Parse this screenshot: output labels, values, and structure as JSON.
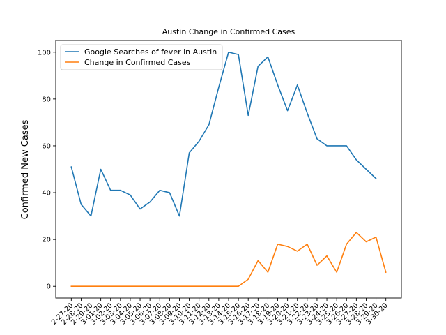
{
  "chart_data": {
    "type": "line",
    "title": "Austin Change in Confirmed Cases",
    "xlabel": "",
    "ylabel": "Confirmed New Cases",
    "ylim": [
      -5,
      105
    ],
    "yticks": [
      0,
      20,
      40,
      60,
      80,
      100
    ],
    "grid": false,
    "legend_position": "top-left",
    "categories": [
      "2-27-20",
      "2-28-20",
      "2-29-20",
      "3-01-20",
      "3-02-20",
      "3-03-20",
      "3-04-20",
      "3-05-20",
      "3-06-20",
      "3-07-20",
      "3-08-20",
      "3-09-20",
      "3-10-20",
      "3-11-20",
      "3-12-20",
      "3-13-20",
      "3-14-20",
      "3-15-20",
      "3-16-20",
      "3-17-20",
      "3-18-20",
      "3-19-20",
      "3-20-20",
      "3-21-20",
      "3-22-20",
      "3-23-20",
      "3-24-20",
      "3-25-20",
      "3-26-20",
      "3-27-20",
      "3-28-20",
      "3-29-20",
      "3-30-20"
    ],
    "series": [
      {
        "name": "Google Searches of fever in Austin",
        "color": "#1f77b4",
        "values": [
          51,
          35,
          30,
          50,
          41,
          41,
          39,
          33,
          36,
          41,
          40,
          30,
          57,
          62,
          69,
          85,
          100,
          99,
          73,
          94,
          98,
          86,
          75,
          86,
          74,
          63,
          60,
          60,
          60,
          54,
          50,
          46,
          null
        ]
      },
      {
        "name": "Change in Confirmed Cases",
        "color": "#ff7f0e",
        "values": [
          0,
          0,
          0,
          0,
          0,
          0,
          0,
          0,
          0,
          0,
          0,
          0,
          0,
          0,
          0,
          0,
          0,
          0,
          3,
          11,
          6,
          18,
          17,
          15,
          18,
          9,
          13,
          6,
          18,
          23,
          19,
          21,
          6
        ]
      }
    ]
  }
}
